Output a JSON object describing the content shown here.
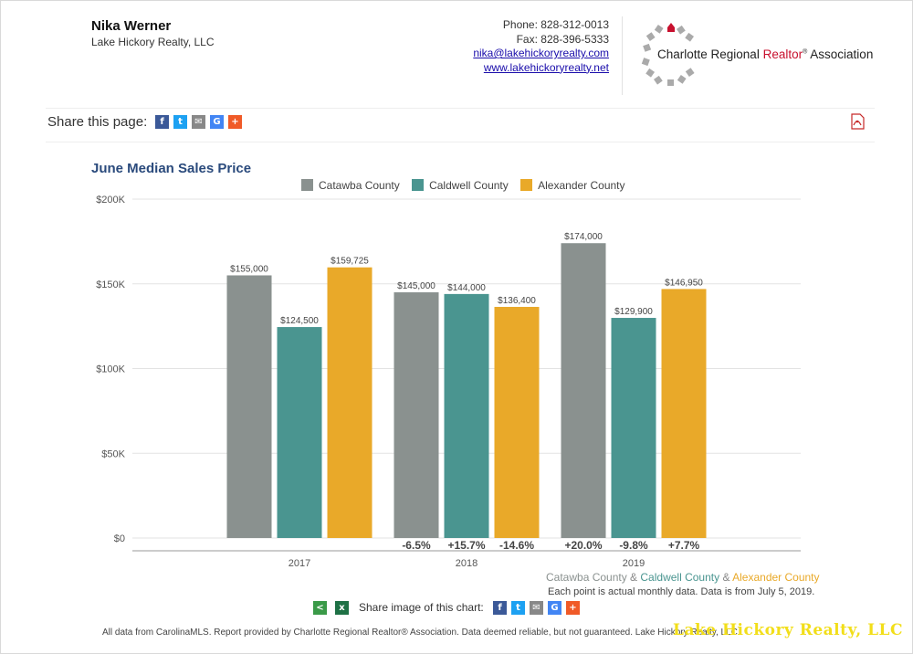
{
  "header": {
    "agent_name": "Nika Werner",
    "agent_company": "Lake Hickory Realty, LLC",
    "phone": "Phone: 828-312-0013",
    "fax": "Fax: 828-396-5333",
    "email": "nika@lakehickoryrealty.com",
    "website": "www.lakehickoryrealty.net",
    "logo_text_pre": "Charlotte Regional ",
    "logo_text_red": "Realtor",
    "logo_text_post": " Association"
  },
  "share": {
    "label": "Share this page:",
    "icons": [
      "facebook-icon",
      "twitter-icon",
      "email-icon",
      "google-icon",
      "plus-icon"
    ]
  },
  "chart_data": {
    "type": "bar",
    "title": "June Median Sales Price",
    "categories": [
      "2017",
      "2018",
      "2019"
    ],
    "series": [
      {
        "name": "Catawba County",
        "color": "#8a918f",
        "values": [
          155000,
          145000,
          174000
        ],
        "labels": [
          "$155,000",
          "$145,000",
          "$174,000"
        ],
        "changes": [
          "",
          "-6.5%",
          "+20.0%"
        ]
      },
      {
        "name": "Caldwell County",
        "color": "#4a9590",
        "values": [
          124500,
          144000,
          129900
        ],
        "labels": [
          "$124,500",
          "$144,000",
          "$129,900"
        ],
        "changes": [
          "",
          "+15.7%",
          "-9.8%"
        ]
      },
      {
        "name": "Alexander County",
        "color": "#e9a929",
        "values": [
          159725,
          136400,
          146950
        ],
        "labels": [
          "$159,725",
          "$136,400",
          "$146,950"
        ],
        "changes": [
          "",
          "-14.6%",
          "+7.7%"
        ]
      }
    ],
    "ylim": [
      0,
      200000
    ],
    "yticks": [
      0,
      50000,
      100000,
      150000,
      200000
    ],
    "ytick_labels": [
      "$0",
      "$50K",
      "$100K",
      "$150K",
      "$200K"
    ],
    "grid": true,
    "legend_position": "top"
  },
  "footer": {
    "legend_catawba": "Catawba County",
    "amp1": " & ",
    "legend_caldwell": "Caldwell County",
    "amp2": " & ",
    "legend_alexander": "Alexander County",
    "note": "Each point is actual monthly data. Data is from July 5, 2019.",
    "share_chart_label": "Share image of this chart:",
    "disclaimer": "All data from CarolinaMLS. Report provided by Charlotte Regional Realtor® Association. Data deemed reliable, but not guaranteed. Lake Hickory Realty, LLC",
    "watermark": "Lake Hickory Realty, LLC"
  },
  "colors": {
    "title": "#2a4a7c",
    "link": "#1a0dab",
    "catawba_text": "#8a918f",
    "caldwell_text": "#4a9590",
    "alexander_text": "#e9a929",
    "watermark": "#f2de1a"
  }
}
